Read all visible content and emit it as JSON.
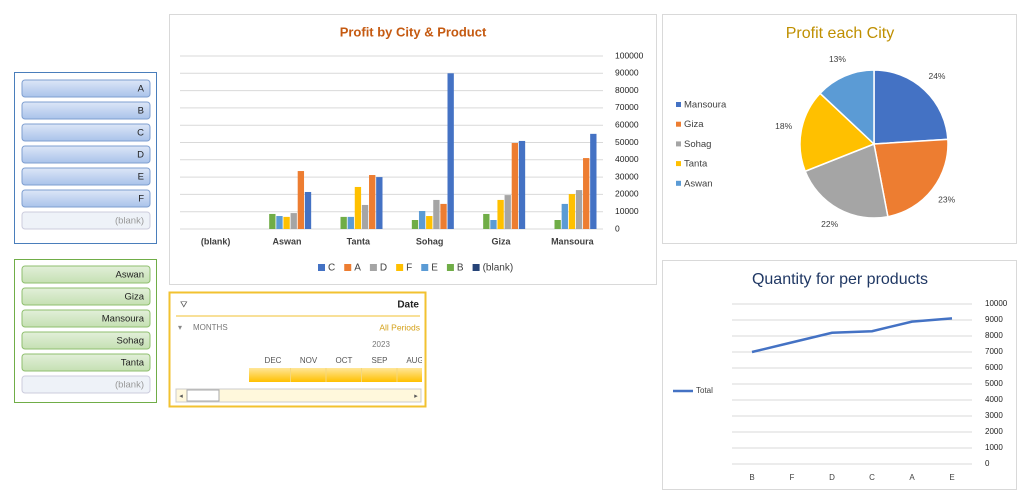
{
  "slicers": [
    {
      "items": [
        "A",
        "B",
        "C",
        "D",
        "E",
        "F",
        "(blank)"
      ]
    },
    {
      "items": [
        "Aswan",
        "Giza",
        "Mansoura",
        "Sohag",
        "Tanta",
        "(blank)"
      ]
    }
  ],
  "timeline": {
    "title": "Date",
    "level": "MONTHS",
    "periods": "All Periods",
    "year": "2023",
    "months": [
      "DEC",
      "NOV",
      "OCT",
      "SEP",
      "AUG"
    ]
  },
  "chart_data": [
    {
      "type": "bar",
      "title": "Profit by City & Product",
      "categories": [
        "(blank)",
        "Aswan",
        "Tanta",
        "Sohag",
        "Giza",
        "Mansoura"
      ],
      "series": [
        {
          "name": "C",
          "color": "#4472c4",
          "values": [
            null,
            21400,
            30000,
            90000,
            50900,
            55000
          ]
        },
        {
          "name": "A",
          "color": "#ed7d31",
          "values": [
            null,
            33500,
            31200,
            14500,
            49700,
            41000
          ]
        },
        {
          "name": "D",
          "color": "#a5a5a5",
          "values": [
            null,
            9200,
            13900,
            16800,
            19600,
            22500
          ]
        },
        {
          "name": "F",
          "color": "#ffc000",
          "values": [
            null,
            7000,
            24300,
            7500,
            16800,
            20200
          ]
        },
        {
          "name": "E",
          "color": "#5b9bd5",
          "values": [
            null,
            7500,
            7000,
            10400,
            5200,
            14500
          ]
        },
        {
          "name": "B",
          "color": "#70ad47",
          "values": [
            null,
            8700,
            7000,
            5200,
            8700,
            5200
          ]
        },
        {
          "name": "(blank)",
          "color": "#264478",
          "values": [
            null,
            null,
            null,
            null,
            null,
            null
          ]
        }
      ],
      "ylim": [
        0,
        100000
      ],
      "yticks": [
        0,
        10000,
        20000,
        30000,
        40000,
        50000,
        60000,
        70000,
        80000,
        90000,
        100000
      ],
      "grid": true,
      "legend": "bottom"
    },
    {
      "type": "pie",
      "title": "Profit each City",
      "categories": [
        "Mansoura",
        "Giza",
        "Sohag",
        "Tanta",
        "Aswan"
      ],
      "values": [
        24,
        23,
        22,
        18,
        13
      ],
      "value_labels": [
        "24%",
        "23%",
        "22%",
        "18%",
        "13%"
      ],
      "colors": [
        "#4472c4",
        "#ed7d31",
        "#a5a5a5",
        "#ffc000",
        "#5b9bd5"
      ],
      "legend": "left"
    },
    {
      "type": "line",
      "title": "Quantity for per products",
      "categories": [
        "B",
        "F",
        "D",
        "C",
        "A",
        "E"
      ],
      "series": [
        {
          "name": "Total",
          "color": "#4472c4",
          "values": [
            7000,
            7600,
            8200,
            8300,
            8900,
            9100
          ]
        }
      ],
      "ylim": [
        0,
        10000
      ],
      "yticks": [
        0,
        1000,
        2000,
        3000,
        4000,
        5000,
        6000,
        7000,
        8000,
        9000,
        10000
      ],
      "grid": true,
      "legend": "left"
    }
  ]
}
